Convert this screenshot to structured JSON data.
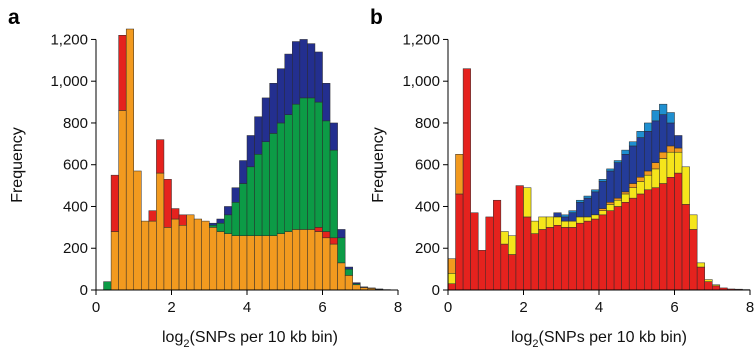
{
  "chart_data": [
    {
      "type": "bar",
      "panel_label": "a",
      "stacked": true,
      "bin_width": 0.2,
      "xlabel_pre": "log",
      "xlabel_sub": "2",
      "xlabel_post": "(SNPs per 10 kb bin)",
      "ylabel": "Frequency",
      "xlim": [
        0,
        8
      ],
      "ylim": [
        0,
        1250
      ],
      "xticks": [
        0,
        2,
        4,
        6,
        8
      ],
      "xtick_labels": [
        "0",
        "2",
        "4",
        "6",
        "8"
      ],
      "yticks": [
        0,
        200,
        400,
        600,
        800,
        1000,
        1200
      ],
      "ytick_labels": [
        "0",
        "200",
        "400",
        "600",
        "800",
        "1,000",
        "1,200"
      ],
      "grid": false,
      "colors": [
        "#f29a1f",
        "#e5221e",
        "#0c9b46",
        "#232f8f"
      ],
      "bin_starts": [
        0.2,
        0.4,
        0.6,
        0.8,
        1.0,
        1.2,
        1.4,
        1.6,
        1.8,
        2.0,
        2.2,
        2.4,
        2.6,
        2.8,
        3.0,
        3.2,
        3.4,
        3.6,
        3.8,
        4.0,
        4.2,
        4.4,
        4.6,
        4.8,
        5.0,
        5.2,
        5.4,
        5.6,
        5.8,
        6.0,
        6.2,
        6.4,
        6.6,
        6.8,
        7.0,
        7.2,
        7.4,
        7.6
      ],
      "series": [
        {
          "values": [
            0,
            280,
            860,
            1250,
            570,
            330,
            330,
            560,
            300,
            340,
            310,
            360,
            340,
            330,
            300,
            280,
            270,
            260,
            260,
            260,
            260,
            260,
            260,
            270,
            280,
            290,
            290,
            290,
            280,
            250,
            220,
            130,
            70,
            25,
            12,
            8,
            4,
            2
          ]
        },
        {
          "values": [
            0,
            270,
            360,
            0,
            0,
            0,
            50,
            160,
            230,
            50,
            50,
            0,
            0,
            0,
            0,
            0,
            0,
            0,
            0,
            0,
            0,
            0,
            0,
            0,
            0,
            0,
            0,
            0,
            20,
            30,
            30,
            0,
            0,
            0,
            0,
            0,
            0,
            0
          ]
        },
        {
          "values": [
            40,
            0,
            0,
            0,
            0,
            0,
            0,
            0,
            0,
            0,
            0,
            0,
            0,
            0,
            10,
            40,
            90,
            160,
            250,
            330,
            390,
            450,
            490,
            530,
            560,
            600,
            630,
            630,
            600,
            530,
            420,
            120,
            30,
            5,
            0,
            0,
            0,
            0
          ]
        },
        {
          "values": [
            0,
            0,
            0,
            0,
            0,
            0,
            0,
            0,
            0,
            0,
            0,
            0,
            0,
            0,
            10,
            20,
            40,
            70,
            110,
            150,
            180,
            210,
            240,
            260,
            290,
            300,
            280,
            260,
            240,
            180,
            130,
            40,
            10,
            5,
            3,
            2,
            1,
            0
          ]
        }
      ]
    },
    {
      "type": "bar",
      "panel_label": "b",
      "stacked": true,
      "bin_width": 0.2,
      "xlabel_pre": "log",
      "xlabel_sub": "2",
      "xlabel_post": "(SNPs per 10 kb bin)",
      "ylabel": "Frequency",
      "xlim": [
        0,
        8
      ],
      "ylim": [
        0,
        1250
      ],
      "xticks": [
        0,
        2,
        4,
        6,
        8
      ],
      "xtick_labels": [
        "0",
        "2",
        "4",
        "6",
        "8"
      ],
      "yticks": [
        0,
        200,
        400,
        600,
        800,
        1000,
        1200
      ],
      "ytick_labels": [
        "0",
        "200",
        "400",
        "600",
        "800",
        "1,000",
        "1,200"
      ],
      "grid": false,
      "colors": [
        "#e5221e",
        "#f5e51b",
        "#f29a1f",
        "#243c99",
        "#1f8fd0"
      ],
      "bin_starts": [
        0.0,
        0.2,
        0.4,
        0.6,
        0.8,
        1.0,
        1.2,
        1.4,
        1.6,
        1.8,
        2.0,
        2.2,
        2.4,
        2.6,
        2.8,
        3.0,
        3.2,
        3.4,
        3.6,
        3.8,
        4.0,
        4.2,
        4.4,
        4.6,
        4.8,
        5.0,
        5.2,
        5.4,
        5.6,
        5.8,
        6.0,
        6.2,
        6.4,
        6.6,
        6.8,
        7.0,
        7.2,
        7.4,
        7.6,
        7.8
      ],
      "series": [
        {
          "values": [
            30,
            460,
            1060,
            370,
            190,
            350,
            430,
            220,
            170,
            500,
            350,
            270,
            290,
            300,
            310,
            300,
            300,
            320,
            330,
            340,
            360,
            380,
            400,
            420,
            440,
            460,
            480,
            490,
            510,
            540,
            560,
            410,
            290,
            110,
            40,
            20,
            10,
            5,
            4,
            2
          ]
        },
        {
          "values": [
            50,
            0,
            0,
            0,
            0,
            0,
            0,
            60,
            90,
            0,
            140,
            60,
            60,
            50,
            40,
            30,
            30,
            30,
            20,
            20,
            20,
            30,
            30,
            40,
            50,
            60,
            70,
            90,
            120,
            120,
            100,
            180,
            70,
            20,
            10,
            5,
            0,
            0,
            0,
            0
          ]
        },
        {
          "values": [
            70,
            190,
            0,
            0,
            0,
            0,
            0,
            0,
            0,
            0,
            0,
            0,
            0,
            0,
            0,
            0,
            0,
            0,
            0,
            0,
            10,
            10,
            10,
            10,
            20,
            20,
            20,
            30,
            30,
            30,
            20,
            0,
            0,
            0,
            0,
            0,
            0,
            0,
            0,
            0
          ]
        },
        {
          "values": [
            0,
            0,
            0,
            0,
            0,
            0,
            0,
            0,
            0,
            0,
            0,
            0,
            0,
            0,
            20,
            20,
            40,
            70,
            90,
            110,
            130,
            150,
            170,
            180,
            180,
            190,
            190,
            200,
            180,
            110,
            60,
            0,
            0,
            0,
            0,
            0,
            0,
            0,
            0,
            0
          ]
        },
        {
          "values": [
            0,
            0,
            0,
            0,
            0,
            0,
            0,
            0,
            0,
            0,
            0,
            0,
            0,
            0,
            0,
            10,
            10,
            10,
            10,
            10,
            10,
            10,
            10,
            20,
            20,
            30,
            40,
            50,
            50,
            50,
            0,
            0,
            0,
            0,
            0,
            0,
            0,
            0,
            0,
            0
          ]
        }
      ]
    }
  ]
}
